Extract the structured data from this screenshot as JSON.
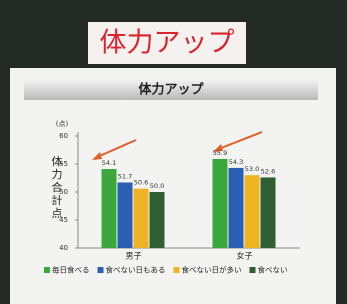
{
  "header": {
    "title": "体力アップ"
  },
  "chart_data": {
    "type": "bar",
    "title": "体力アップ",
    "y_unit": "(点)",
    "y_label": "体力合計点",
    "categories": [
      "男子",
      "女子"
    ],
    "ylim": [
      40,
      60
    ],
    "yticks": [
      40,
      45,
      50,
      55,
      60
    ],
    "series": [
      {
        "name": "毎日食べる",
        "color": "#3aa83c",
        "values": [
          54.1,
          55.9
        ],
        "value_labels": [
          "54.1",
          "55.9"
        ]
      },
      {
        "name": "食べない日もある",
        "color": "#2b5fb3",
        "values": [
          51.7,
          54.3
        ],
        "value_labels": [
          "51.7",
          "54.3"
        ]
      },
      {
        "name": "食べない日が多い",
        "color": "#f0b324",
        "values": [
          50.6,
          53.0
        ],
        "value_labels": [
          "50.6",
          "53.0"
        ]
      },
      {
        "name": "食べない",
        "color": "#2f5f33",
        "values": [
          50.0,
          52.6
        ],
        "value_labels": [
          "50.0",
          "52.6"
        ]
      }
    ]
  }
}
